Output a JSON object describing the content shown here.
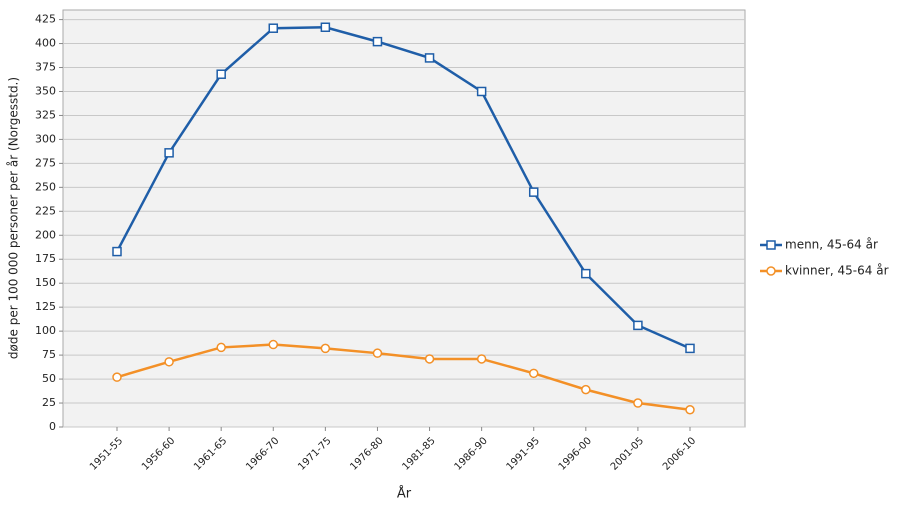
{
  "chart_data": {
    "type": "line",
    "x_label": "År",
    "y_label": "døde per 100 000 personer per år (Norgesstd.)",
    "categories": [
      "1951-55",
      "1956-60",
      "1961-65",
      "1966-70",
      "1971-75",
      "1976-80",
      "1981-85",
      "1986-90",
      "1991-95",
      "1996-00",
      "2001-05",
      "2006-10"
    ],
    "series": [
      {
        "name": "menn, 45-64 år",
        "color": "#1f5ea8",
        "marker": "square",
        "values": [
          183,
          286,
          368,
          416,
          417,
          402,
          385,
          350,
          245,
          160,
          106,
          82
        ]
      },
      {
        "name": "kvinner, 45-64 år",
        "color": "#f39027",
        "marker": "circle",
        "values": [
          52,
          68,
          83,
          86,
          82,
          77,
          71,
          71,
          56,
          39,
          25,
          18
        ]
      }
    ],
    "ylim": [
      0,
      435
    ],
    "yticks": [
      0,
      25,
      50,
      75,
      100,
      125,
      150,
      175,
      200,
      225,
      250,
      275,
      300,
      325,
      350,
      375,
      400,
      425
    ],
    "grid": true,
    "legend": "right"
  }
}
